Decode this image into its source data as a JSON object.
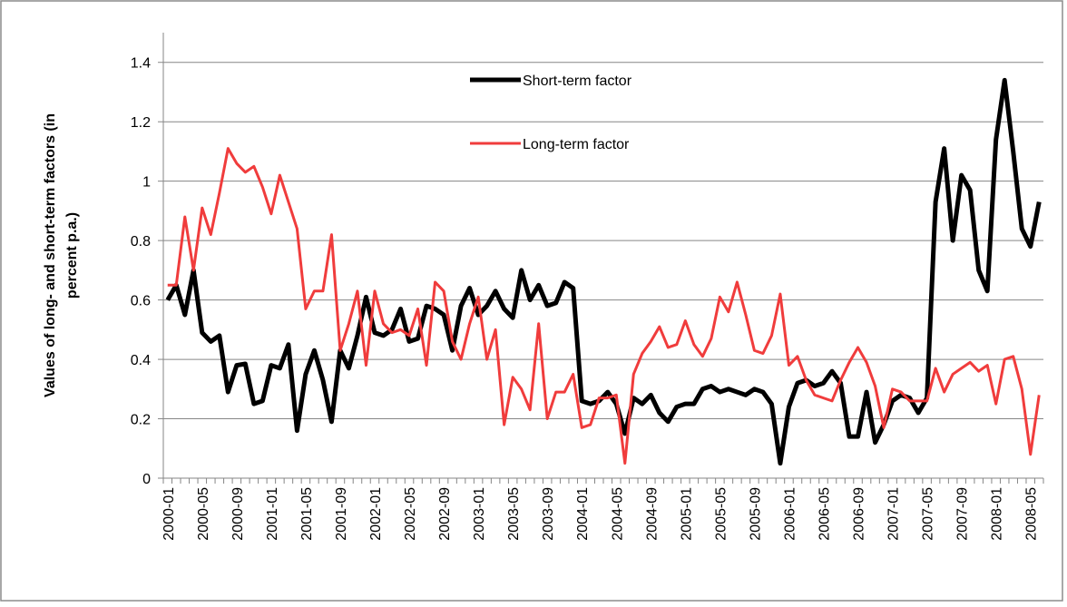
{
  "chart_data": {
    "type": "line",
    "y_label": "Values of long- and short-term factors (in percent p.a.)",
    "categories": [
      "2000-01",
      null,
      null,
      null,
      "2000-05",
      null,
      null,
      null,
      "2000-09",
      null,
      null,
      null,
      "2001-01",
      null,
      null,
      null,
      "2001-05",
      null,
      null,
      null,
      "2001-09",
      null,
      null,
      null,
      "2002-01",
      null,
      null,
      null,
      "2002-05",
      null,
      null,
      null,
      "2002-09",
      null,
      null,
      null,
      "2003-01",
      null,
      null,
      null,
      "2003-05",
      null,
      null,
      null,
      "2003-09",
      null,
      null,
      null,
      "2004-01",
      null,
      null,
      null,
      "2004-05",
      null,
      null,
      null,
      "2004-09",
      null,
      null,
      null,
      "2005-01",
      null,
      null,
      null,
      "2005-05",
      null,
      null,
      null,
      "2005-09",
      null,
      null,
      null,
      "2006-01",
      null,
      null,
      null,
      "2006-05",
      null,
      null,
      null,
      "2006-09",
      null,
      null,
      null,
      "2007-01",
      null,
      null,
      null,
      "2007-05",
      null,
      null,
      null,
      "2007-09",
      null,
      null,
      null,
      "2008-01",
      null,
      null,
      null,
      "2008-05",
      null
    ],
    "series": [
      {
        "name": "Short-term factor",
        "color": "#000000",
        "width": 5,
        "values": [
          0.6,
          0.65,
          0.55,
          0.7,
          0.49,
          0.46,
          0.48,
          0.29,
          0.38,
          0.385,
          0.25,
          0.26,
          0.38,
          0.37,
          0.45,
          0.16,
          0.35,
          0.43,
          0.33,
          0.19,
          0.43,
          0.37,
          0.48,
          0.61,
          0.49,
          0.48,
          0.5,
          0.57,
          0.46,
          0.47,
          0.58,
          0.57,
          0.55,
          0.43,
          0.58,
          0.64,
          0.55,
          0.58,
          0.63,
          0.57,
          0.54,
          0.7,
          0.6,
          0.65,
          0.58,
          0.59,
          0.66,
          0.64,
          0.26,
          0.25,
          0.26,
          0.29,
          0.25,
          0.15,
          0.27,
          0.25,
          0.28,
          0.22,
          0.19,
          0.24,
          0.25,
          0.25,
          0.3,
          0.31,
          0.29,
          0.3,
          0.29,
          0.28,
          0.3,
          0.29,
          0.25,
          0.05,
          0.24,
          0.32,
          0.33,
          0.31,
          0.32,
          0.36,
          0.32,
          0.14,
          0.14,
          0.29,
          0.12,
          0.18,
          0.26,
          0.28,
          0.27,
          0.22,
          0.27,
          0.93,
          1.11,
          0.8,
          1.02,
          0.97,
          0.7,
          0.63,
          1.14,
          1.34,
          1.1,
          0.84,
          0.78,
          0.93
        ]
      },
      {
        "name": "Long-term factor",
        "color": "#f03c3c",
        "width": 3,
        "values": [
          0.65,
          0.65,
          0.88,
          0.7,
          0.91,
          0.82,
          0.96,
          1.11,
          1.06,
          1.03,
          1.05,
          0.98,
          0.89,
          1.02,
          0.93,
          0.84,
          0.57,
          0.63,
          0.63,
          0.82,
          0.43,
          0.52,
          0.63,
          0.38,
          0.63,
          0.52,
          0.49,
          0.5,
          0.48,
          0.57,
          0.38,
          0.66,
          0.63,
          0.46,
          0.4,
          0.52,
          0.61,
          0.4,
          0.5,
          0.18,
          0.34,
          0.3,
          0.23,
          0.52,
          0.2,
          0.29,
          0.29,
          0.35,
          0.17,
          0.18,
          0.27,
          0.27,
          0.28,
          0.05,
          0.35,
          0.42,
          0.46,
          0.51,
          0.44,
          0.45,
          0.53,
          0.45,
          0.41,
          0.47,
          0.61,
          0.56,
          0.66,
          0.55,
          0.43,
          0.42,
          0.48,
          0.62,
          0.38,
          0.41,
          0.33,
          0.28,
          0.27,
          0.26,
          0.33,
          0.39,
          0.44,
          0.39,
          0.31,
          0.17,
          0.3,
          0.29,
          0.26,
          0.26,
          0.26,
          0.37,
          0.29,
          0.35,
          0.37,
          0.39,
          0.36,
          0.38,
          0.25,
          0.4,
          0.41,
          0.3,
          0.08,
          0.28
        ]
      }
    ],
    "ylim": [
      0,
      1.5
    ],
    "yticks": [
      0,
      0.2,
      0.4,
      0.6,
      0.8,
      1,
      1.2,
      1.4
    ],
    "grid": true,
    "legend_position": "top"
  }
}
